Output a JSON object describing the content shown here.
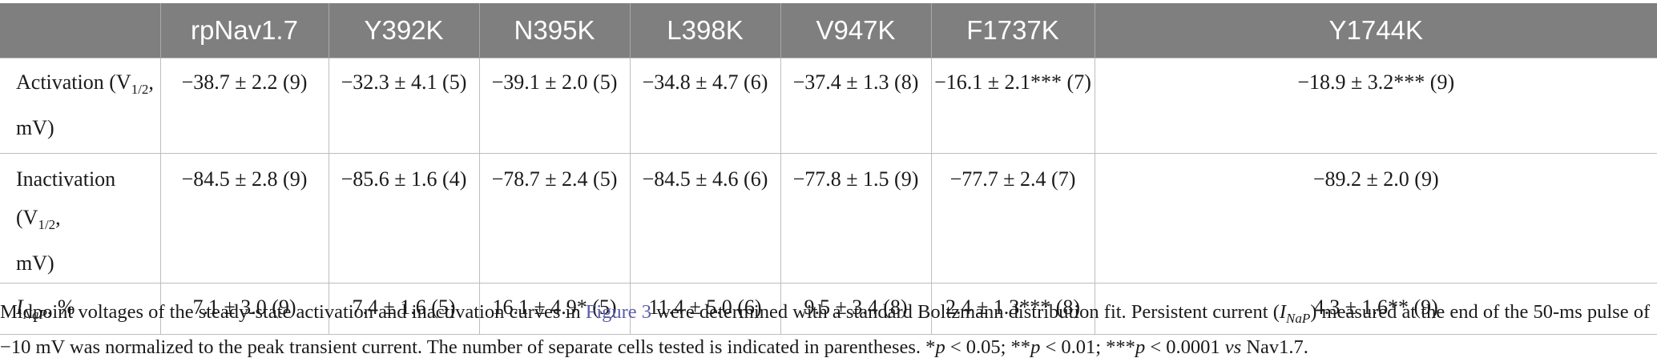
{
  "table": {
    "headers": [
      "",
      "rpNav1.7",
      "Y392K",
      "N395K",
      "L398K",
      "V947K",
      "F1737K",
      "Y1744K"
    ],
    "rows": [
      {
        "label": {
          "pre": "Activation (V",
          "sub": "1/2",
          "post": ",",
          "line2": "mV)"
        },
        "cells": [
          "−38.7 ± 2.2 (9)",
          "−32.3 ± 4.1 (5)",
          "−39.1 ± 2.0 (5)",
          "−34.8 ± 4.7 (6)",
          "−37.4 ± 1.3 (8)",
          "−16.1 ± 2.1*** (7)",
          "−18.9 ± 3.2*** (9)"
        ]
      },
      {
        "label": {
          "pre": "Inactivation (V",
          "sub": "1/2",
          "post": ",",
          "line2": "mV)"
        },
        "cells": [
          "−84.5 ± 2.8 (9)",
          "−85.6 ± 1.6 (4)",
          "−78.7 ± 2.4 (5)",
          "−84.5 ± 4.6 (6)",
          "−77.8 ± 1.5 (9)",
          "−77.7 ± 2.4 (7)",
          "−89.2 ± 2.0 (9)"
        ]
      },
      {
        "label": {
          "italic": "I",
          "sub": "NaP",
          "post": ", %"
        },
        "cells": [
          "7.1 ± 3.0 (9)",
          "7.4 ± 1.6 (5)",
          "16.1 ± 4.9* (5)",
          "11.4 ± 5.0 (6)",
          "9.5 ± 3.4 (8)",
          "2.4 ± 1.3*** (8)",
          "4.3 ± 1.6** (9)"
        ]
      }
    ]
  },
  "caption": {
    "t1": "Midpoint voltages of the steady-state activation and inactivation curves in ",
    "link": "Figure 3",
    "t2": " were determined with a standard Boltzmann distribution fit. Persistent current (",
    "i": "I",
    "sub": "NaP",
    "t3": ") measured at the end of the 50-ms pulse of −10 mV was normalized to the peak transient current. The number of separate cells tested is indicated in parentheses. *",
    "p1": "p",
    "t4": " < 0.05; **",
    "p2": "p",
    "t5": " < 0.01; ***",
    "p3": "p",
    "t6": " < 0.0001 ",
    "vs": "vs",
    "t7": " Nav1.7."
  }
}
